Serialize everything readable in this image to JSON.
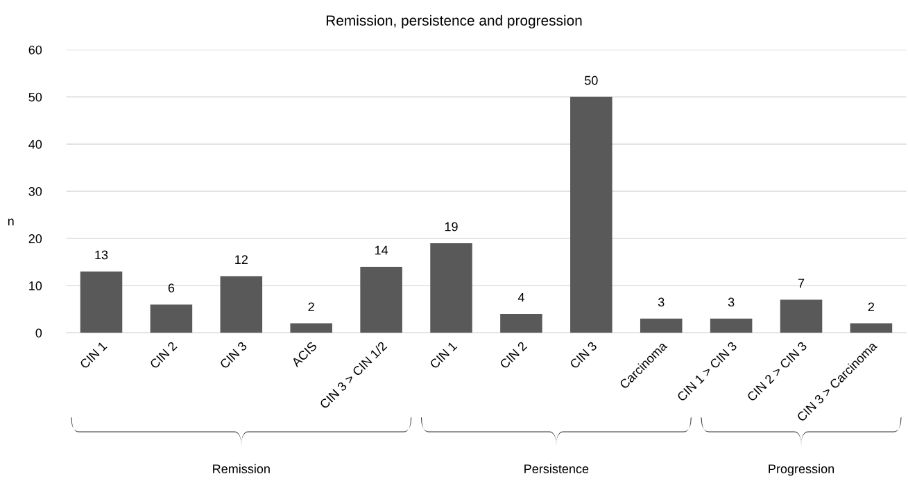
{
  "chart_data": {
    "type": "bar",
    "title": "Remission, persistence and progression",
    "ylabel": "n",
    "categories": [
      "CIN 1",
      "CIN 2",
      "CIN 3",
      "ACIS",
      "CIN 3 > CIN 1/2",
      "CIN 1",
      "CIN 2",
      "CIN 3",
      "Carcinoma",
      "CIN 1 > CIN 3",
      "CIN 2 > CIN 3",
      "CIN 3 > Carcinoma"
    ],
    "values": [
      13,
      6,
      12,
      2,
      14,
      19,
      4,
      50,
      3,
      3,
      7,
      2
    ],
    "color": "#595959",
    "ylim": [
      0,
      60
    ],
    "yticks": [
      0,
      10,
      20,
      30,
      40,
      50,
      60
    ],
    "grid": "y",
    "data_labels": true,
    "annotations": [
      "Remission",
      "Persistence",
      "Progression"
    ]
  }
}
